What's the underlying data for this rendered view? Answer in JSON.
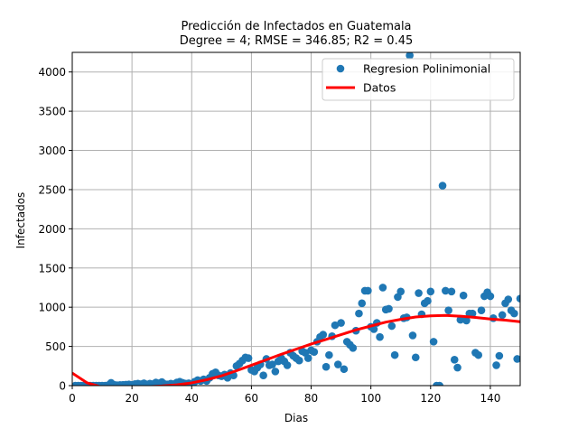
{
  "chart_data": {
    "type": "scatter",
    "title": "Predicción de Infectados en  Guatemala",
    "subtitle": "Degree = 4; RMSE = 346.85; R2 = 0.45",
    "xlabel": "Dias",
    "ylabel": "Infectados",
    "xlim": [
      0,
      150
    ],
    "ylim": [
      0,
      4250
    ],
    "xticks": [
      0,
      20,
      40,
      60,
      80,
      100,
      120,
      140
    ],
    "yticks": [
      0,
      500,
      1000,
      1500,
      2000,
      2500,
      3000,
      3500,
      4000
    ],
    "grid": true,
    "legend_position": "top-right",
    "colors": {
      "scatter": "#1f77b4",
      "line": "#ff0000",
      "grid": "#b0b0b0"
    },
    "series": [
      {
        "name": "Regresion Polinimonial",
        "kind": "scatter",
        "points": [
          [
            1,
            0
          ],
          [
            2,
            0
          ],
          [
            3,
            0
          ],
          [
            4,
            0
          ],
          [
            5,
            0
          ],
          [
            6,
            0
          ],
          [
            7,
            0
          ],
          [
            8,
            0
          ],
          [
            9,
            0
          ],
          [
            10,
            0
          ],
          [
            11,
            0
          ],
          [
            12,
            5
          ],
          [
            13,
            35
          ],
          [
            14,
            10
          ],
          [
            15,
            5
          ],
          [
            16,
            8
          ],
          [
            17,
            10
          ],
          [
            18,
            12
          ],
          [
            19,
            15
          ],
          [
            20,
            10
          ],
          [
            21,
            20
          ],
          [
            22,
            25
          ],
          [
            23,
            18
          ],
          [
            24,
            30
          ],
          [
            25,
            15
          ],
          [
            26,
            25
          ],
          [
            27,
            20
          ],
          [
            28,
            40
          ],
          [
            29,
            30
          ],
          [
            30,
            45
          ],
          [
            31,
            20
          ],
          [
            32,
            15
          ],
          [
            33,
            25
          ],
          [
            34,
            20
          ],
          [
            35,
            40
          ],
          [
            36,
            50
          ],
          [
            37,
            35
          ],
          [
            38,
            25
          ],
          [
            39,
            30
          ],
          [
            40,
            20
          ],
          [
            41,
            50
          ],
          [
            42,
            70
          ],
          [
            43,
            60
          ],
          [
            44,
            80
          ],
          [
            45,
            60
          ],
          [
            46,
            100
          ],
          [
            47,
            150
          ],
          [
            48,
            170
          ],
          [
            49,
            130
          ],
          [
            50,
            120
          ],
          [
            51,
            140
          ],
          [
            52,
            100
          ],
          [
            53,
            160
          ],
          [
            54,
            130
          ],
          [
            55,
            250
          ],
          [
            56,
            280
          ],
          [
            57,
            320
          ],
          [
            58,
            360
          ],
          [
            59,
            350
          ],
          [
            60,
            200
          ],
          [
            61,
            180
          ],
          [
            62,
            230
          ],
          [
            63,
            270
          ],
          [
            64,
            130
          ],
          [
            65,
            340
          ],
          [
            66,
            260
          ],
          [
            67,
            270
          ],
          [
            68,
            180
          ],
          [
            69,
            310
          ],
          [
            70,
            350
          ],
          [
            71,
            310
          ],
          [
            72,
            260
          ],
          [
            73,
            420
          ],
          [
            74,
            380
          ],
          [
            75,
            350
          ],
          [
            76,
            320
          ],
          [
            77,
            440
          ],
          [
            78,
            420
          ],
          [
            79,
            350
          ],
          [
            80,
            450
          ],
          [
            81,
            430
          ],
          [
            82,
            560
          ],
          [
            83,
            620
          ],
          [
            84,
            650
          ],
          [
            85,
            240
          ],
          [
            86,
            390
          ],
          [
            87,
            630
          ],
          [
            88,
            770
          ],
          [
            89,
            270
          ],
          [
            90,
            800
          ],
          [
            91,
            210
          ],
          [
            92,
            560
          ],
          [
            93,
            520
          ],
          [
            94,
            480
          ],
          [
            95,
            700
          ],
          [
            96,
            920
          ],
          [
            97,
            1050
          ],
          [
            98,
            1210
          ],
          [
            99,
            1210
          ],
          [
            100,
            750
          ],
          [
            101,
            720
          ],
          [
            102,
            800
          ],
          [
            103,
            620
          ],
          [
            104,
            1250
          ],
          [
            105,
            970
          ],
          [
            106,
            980
          ],
          [
            107,
            760
          ],
          [
            108,
            390
          ],
          [
            109,
            1130
          ],
          [
            110,
            1200
          ],
          [
            111,
            860
          ],
          [
            112,
            870
          ],
          [
            113,
            4210
          ],
          [
            114,
            640
          ],
          [
            115,
            360
          ],
          [
            116,
            1180
          ],
          [
            117,
            910
          ],
          [
            118,
            1050
          ],
          [
            119,
            1080
          ],
          [
            120,
            1200
          ],
          [
            121,
            560
          ],
          [
            122,
            0
          ],
          [
            123,
            0
          ],
          [
            124,
            2550
          ],
          [
            125,
            1210
          ],
          [
            126,
            960
          ],
          [
            127,
            1200
          ],
          [
            128,
            330
          ],
          [
            129,
            230
          ],
          [
            130,
            840
          ],
          [
            131,
            1150
          ],
          [
            132,
            830
          ],
          [
            133,
            920
          ],
          [
            134,
            920
          ],
          [
            135,
            420
          ],
          [
            136,
            390
          ],
          [
            137,
            960
          ],
          [
            138,
            1140
          ],
          [
            139,
            1190
          ],
          [
            140,
            1140
          ],
          [
            141,
            860
          ],
          [
            142,
            260
          ],
          [
            143,
            380
          ],
          [
            144,
            900
          ],
          [
            145,
            1050
          ],
          [
            146,
            1100
          ],
          [
            147,
            960
          ],
          [
            148,
            920
          ],
          [
            149,
            340
          ],
          [
            150,
            1110
          ]
        ]
      },
      {
        "name": "Datos",
        "kind": "line",
        "x": [
          0,
          5,
          10,
          15,
          20,
          25,
          30,
          35,
          40,
          45,
          50,
          55,
          60,
          65,
          70,
          75,
          80,
          85,
          90,
          95,
          100,
          105,
          110,
          115,
          120,
          125,
          130,
          135,
          140,
          145,
          150
        ],
        "y": [
          160,
          35,
          -20,
          -30,
          -25,
          -15,
          -5,
          10,
          35,
          75,
          125,
          190,
          260,
          330,
          400,
          465,
          530,
          590,
          650,
          710,
          760,
          810,
          845,
          875,
          890,
          895,
          885,
          870,
          850,
          835,
          815
        ]
      }
    ]
  }
}
